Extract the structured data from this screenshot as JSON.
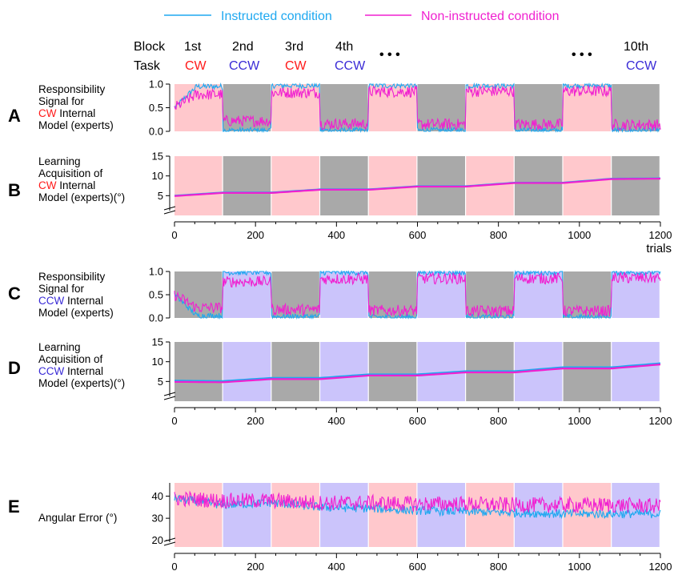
{
  "legend": [
    {
      "name": "Instructed condition",
      "color": "#1ea8f0"
    },
    {
      "name": "Non-instructed condition",
      "color": "#f020d0"
    }
  ],
  "header": {
    "block_label": "Block",
    "task_label": "Task",
    "ellipsis": "• • •",
    "columns": [
      {
        "block": "1st",
        "task": "CW",
        "task_color": "#ff1a1a"
      },
      {
        "block": "2nd",
        "task": "CCW",
        "task_color": "#3a2bd6"
      },
      {
        "block": "3rd",
        "task": "CW",
        "task_color": "#ff1a1a"
      },
      {
        "block": "4th",
        "task": "CCW",
        "task_color": "#3a2bd6"
      },
      {
        "block": "10th",
        "task": "CCW",
        "task_color": "#3a2bd6"
      }
    ]
  },
  "colors": {
    "cw_block": "#ffc8cc",
    "ccw_block_gray": "#a9a9a9",
    "ccw_block_lavender": "#cbc4fb",
    "cw_word": "#ff1a1a",
    "ccw_word": "#3a2bd6"
  },
  "chart_data": [
    {
      "id": "A",
      "type": "line",
      "letter": "A",
      "label_lines": [
        [
          {
            "t": "Responsibility"
          }
        ],
        [
          {
            "t": "Signal for"
          }
        ],
        [
          {
            "t": "CW",
            "c": "#ff1a1a"
          },
          {
            "t": " Internal"
          }
        ],
        [
          {
            "t": "Model (experts)"
          }
        ]
      ],
      "ylim": [
        0,
        1
      ],
      "yticks": [
        "0.0",
        "0.5",
        "1.0"
      ],
      "xlim": [
        0,
        1200
      ],
      "xticks": [],
      "xlabel": "",
      "block_pattern": [
        "cw",
        "gray",
        "cw",
        "gray",
        "cw",
        "gray",
        "cw",
        "gray",
        "cw",
        "gray"
      ],
      "series": [
        {
          "name": "Instructed condition",
          "color": "#1ea8f0",
          "block_levels": [
            0.95,
            0.02,
            0.97,
            0.02,
            0.97,
            0.02,
            0.97,
            0.02,
            0.97,
            0.02
          ],
          "noise": 0.06
        },
        {
          "name": "Non-instructed condition",
          "color": "#f020d0",
          "block_levels": [
            0.78,
            0.22,
            0.82,
            0.16,
            0.84,
            0.15,
            0.85,
            0.15,
            0.85,
            0.14
          ],
          "noise": 0.12
        }
      ]
    },
    {
      "id": "B",
      "type": "line",
      "letter": "B",
      "label_lines": [
        [
          {
            "t": "Learning"
          }
        ],
        [
          {
            "t": "Acquisition of"
          }
        ],
        [
          {
            "t": "CW",
            "c": "#ff1a1a"
          },
          {
            "t": " Internal"
          }
        ],
        [
          {
            "t": "Model (experts)(°)"
          }
        ]
      ],
      "ylim": [
        0,
        15
      ],
      "yticks": [
        "5",
        "10",
        "15"
      ],
      "axis_break": true,
      "xlim": [
        0,
        1200
      ],
      "xticks": [
        "0",
        "200",
        "400",
        "600",
        "800",
        "1000",
        "1200"
      ],
      "xlabel": "trials",
      "block_pattern": [
        "cw",
        "gray",
        "cw",
        "gray",
        "cw",
        "gray",
        "cw",
        "gray",
        "cw",
        "gray"
      ],
      "series": [
        {
          "name": "Instructed condition",
          "color": "#1ea8f0",
          "x": [
            0,
            120,
            240,
            360,
            480,
            600,
            720,
            840,
            960,
            1080,
            1200
          ],
          "y": [
            5.0,
            5.8,
            5.8,
            6.6,
            6.6,
            7.4,
            7.4,
            8.3,
            8.3,
            9.3,
            9.4
          ]
        },
        {
          "name": "Non-instructed condition",
          "color": "#f020d0",
          "x": [
            0,
            120,
            240,
            360,
            480,
            600,
            720,
            840,
            960,
            1080,
            1200
          ],
          "y": [
            4.9,
            5.7,
            5.7,
            6.5,
            6.5,
            7.3,
            7.3,
            8.2,
            8.2,
            9.2,
            9.3
          ]
        }
      ]
    },
    {
      "id": "C",
      "type": "line",
      "letter": "C",
      "label_lines": [
        [
          {
            "t": "Responsibility"
          }
        ],
        [
          {
            "t": "Signal for"
          }
        ],
        [
          {
            "t": "CCW",
            "c": "#3a2bd6"
          },
          {
            "t": " Internal"
          }
        ],
        [
          {
            "t": "Model (experts)"
          }
        ]
      ],
      "ylim": [
        0,
        1
      ],
      "yticks": [
        "0.0",
        "0.5",
        "1.0"
      ],
      "xlim": [
        0,
        1200
      ],
      "xticks": [],
      "xlabel": "",
      "block_pattern": [
        "gray",
        "lav",
        "gray",
        "lav",
        "gray",
        "lav",
        "gray",
        "lav",
        "gray",
        "lav"
      ],
      "series": [
        {
          "name": "Instructed condition",
          "color": "#1ea8f0",
          "block_levels": [
            0.05,
            0.98,
            0.03,
            0.98,
            0.02,
            0.98,
            0.02,
            0.98,
            0.02,
            0.98
          ],
          "noise": 0.06
        },
        {
          "name": "Non-instructed condition",
          "color": "#f020d0",
          "block_levels": [
            0.22,
            0.78,
            0.18,
            0.84,
            0.16,
            0.85,
            0.15,
            0.85,
            0.15,
            0.86
          ],
          "noise": 0.12
        }
      ]
    },
    {
      "id": "D",
      "type": "line",
      "letter": "D",
      "label_lines": [
        [
          {
            "t": "Learning"
          }
        ],
        [
          {
            "t": "Acquisition of"
          }
        ],
        [
          {
            "t": "CCW",
            "c": "#3a2bd6"
          },
          {
            "t": " Internal"
          }
        ],
        [
          {
            "t": "Model (experts)(°)"
          }
        ]
      ],
      "ylim": [
        0,
        15
      ],
      "yticks": [
        "5",
        "10",
        "15"
      ],
      "axis_break": true,
      "xlim": [
        0,
        1200
      ],
      "xticks": [
        "0",
        "200",
        "400",
        "600",
        "800",
        "1000",
        "1200"
      ],
      "xlabel": "",
      "block_pattern": [
        "gray",
        "lav",
        "gray",
        "lav",
        "gray",
        "lav",
        "gray",
        "lav",
        "gray",
        "lav"
      ],
      "series": [
        {
          "name": "Instructed condition",
          "color": "#1ea8f0",
          "x": [
            0,
            120,
            240,
            360,
            480,
            600,
            720,
            840,
            960,
            1080,
            1200
          ],
          "y": [
            5.2,
            5.1,
            5.9,
            5.9,
            6.8,
            6.8,
            7.6,
            7.6,
            8.6,
            8.6,
            9.6
          ]
        },
        {
          "name": "Non-instructed condition",
          "color": "#f020d0",
          "x": [
            0,
            120,
            240,
            360,
            480,
            600,
            720,
            840,
            960,
            1080,
            1200
          ],
          "y": [
            4.9,
            4.8,
            5.6,
            5.6,
            6.5,
            6.5,
            7.3,
            7.3,
            8.3,
            8.3,
            9.3
          ]
        }
      ]
    },
    {
      "id": "E",
      "type": "line",
      "letter": "E",
      "label_lines": [
        [
          {
            "t": "Angular Error (°)"
          }
        ]
      ],
      "ylim": [
        17,
        46
      ],
      "yticks": [
        "20",
        "30",
        "40"
      ],
      "axis_break": true,
      "xlim": [
        0,
        1200
      ],
      "xticks": [
        "0",
        "200",
        "400",
        "600",
        "800",
        "1000",
        "1200"
      ],
      "xlabel": "",
      "block_pattern": [
        "cw",
        "lav",
        "cw",
        "lav",
        "cw",
        "lav",
        "cw",
        "lav",
        "cw",
        "lav"
      ],
      "series": [
        {
          "name": "Instructed condition",
          "color": "#1ea8f0",
          "x": [
            0,
            120,
            240,
            360,
            480,
            600,
            720,
            840,
            960,
            1080,
            1200
          ],
          "y": [
            39,
            36,
            37,
            35,
            34.5,
            33.5,
            33,
            32.5,
            32,
            32,
            32
          ],
          "noise": 2.0
        },
        {
          "name": "Non-instructed condition",
          "color": "#f020d0",
          "x": [
            0,
            120,
            240,
            360,
            480,
            600,
            720,
            840,
            960,
            1080,
            1200
          ],
          "y": [
            39,
            38,
            38,
            37,
            37,
            36.5,
            36.5,
            36,
            36,
            36,
            35.5
          ],
          "noise": 3.5
        }
      ]
    }
  ]
}
